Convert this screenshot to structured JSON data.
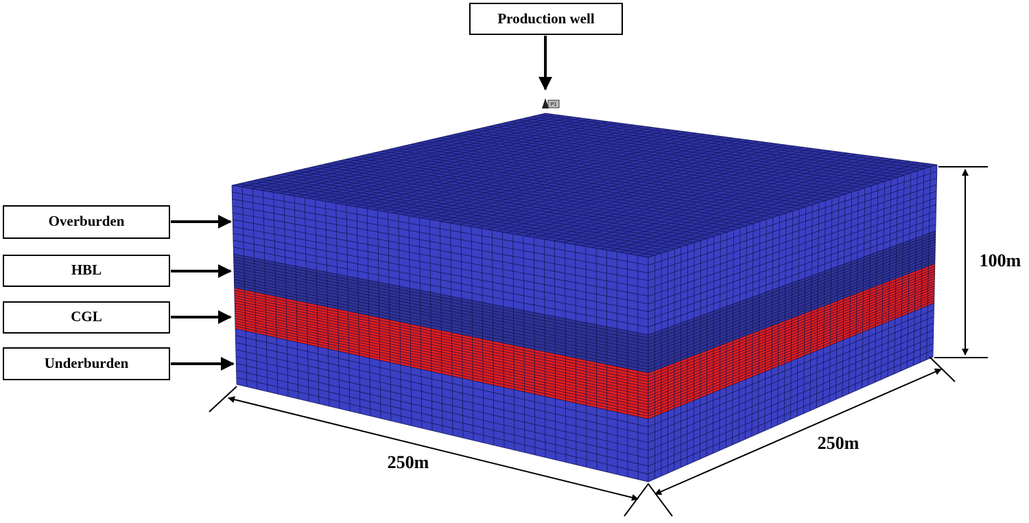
{
  "well_label": "Production well",
  "well_marker": "P1",
  "layers": [
    "Overburden",
    "HBL",
    "CGL",
    "Underburden"
  ],
  "dimensions": {
    "height": "100m",
    "length": "250m",
    "width": "250m"
  }
}
